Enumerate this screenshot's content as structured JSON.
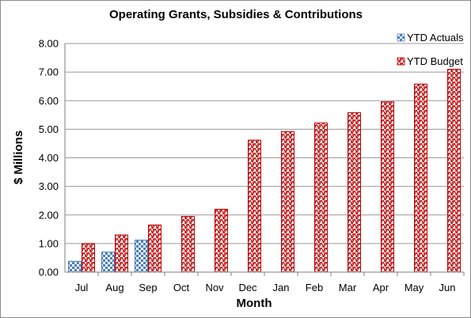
{
  "chart_data": {
    "type": "bar",
    "title": "Operating Grants, Subsidies & Contributions",
    "xlabel": "Month",
    "ylabel": "$ Millions",
    "ylim": [
      0,
      8
    ],
    "yticks": [
      "0.00",
      "1.00",
      "2.00",
      "3.00",
      "4.00",
      "5.00",
      "6.00",
      "7.00",
      "8.00"
    ],
    "grid": true,
    "legend_position": "top-right",
    "categories": [
      "Jul",
      "Aug",
      "Sep",
      "Oct",
      "Nov",
      "Dec",
      "Jan",
      "Feb",
      "Mar",
      "Apr",
      "May",
      "Jun"
    ],
    "series": [
      {
        "name": "YTD Actuals",
        "color": "#4a7ebb",
        "pattern": "checker",
        "values": [
          0.38,
          0.7,
          1.12,
          null,
          null,
          null,
          null,
          null,
          null,
          null,
          null,
          null
        ]
      },
      {
        "name": "YTD Budget",
        "color": "#c00000",
        "pattern": "zigzag",
        "values": [
          1.0,
          1.3,
          1.65,
          1.95,
          2.2,
          4.62,
          4.92,
          5.22,
          5.58,
          5.96,
          6.58,
          7.1
        ]
      }
    ]
  }
}
